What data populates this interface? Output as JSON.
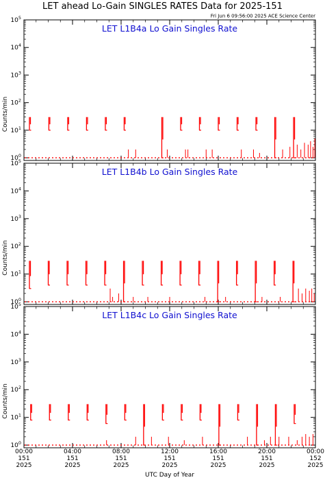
{
  "title": "LET ahead Lo-Gain SINGLES RATES Data for 2025-151",
  "timestamp": "Fri Jun  6 09:56:00 2025 ACE Science Center",
  "xlabel": "UTC Day of Year",
  "colors": {
    "series": "#ff0000",
    "panel_title": "#1010d0",
    "axes": "#000000"
  },
  "x_ticks": [
    {
      "hour": 0,
      "l1": "00:00",
      "l2": "151",
      "l3": "2025"
    },
    {
      "hour": 4,
      "l1": "04:00",
      "l2": "151",
      "l3": "2025"
    },
    {
      "hour": 8,
      "l1": "08:00",
      "l2": "151",
      "l3": "2025"
    },
    {
      "hour": 12,
      "l1": "12:00",
      "l2": "151",
      "l3": "2025"
    },
    {
      "hour": 16,
      "l1": "16:00",
      "l2": "151",
      "l3": "2025"
    },
    {
      "hour": 20,
      "l1": "20:00",
      "l2": "151",
      "l3": "2025"
    },
    {
      "hour": 24,
      "l1": "00:00",
      "l2": "152",
      "l3": "2025"
    }
  ],
  "chart_data": [
    {
      "type": "line",
      "title": "LET L1B4a Lo Gain Singles Rate",
      "ylabel": "Counts/min",
      "yscale": "log",
      "ylim": [
        0.8,
        100000
      ],
      "xlim": [
        0,
        24
      ],
      "y_ticks": [
        {
          "base": "10",
          "exp": "0",
          "v": 1
        },
        {
          "base": "10",
          "exp": "1",
          "v": 10
        },
        {
          "base": "10",
          "exp": "2",
          "v": 100
        },
        {
          "base": "10",
          "exp": "3",
          "v": 1000
        },
        {
          "base": "10",
          "exp": "4",
          "v": 10000
        },
        {
          "base": "10",
          "exp": "5",
          "v": 100000
        }
      ],
      "spikes": [
        {
          "x": 0.45,
          "y": 30,
          "ymin": 10
        },
        {
          "x": 2.05,
          "y": 30,
          "ymin": 10
        },
        {
          "x": 3.6,
          "y": 30,
          "ymin": 10
        },
        {
          "x": 5.15,
          "y": 30,
          "ymin": 10
        },
        {
          "x": 6.7,
          "y": 30,
          "ymin": 10
        },
        {
          "x": 8.25,
          "y": 30,
          "ymin": 10
        },
        {
          "x": 11.35,
          "y": 30,
          "ymin": 1
        },
        {
          "x": 12.9,
          "y": 30,
          "ymin": 10
        },
        {
          "x": 14.45,
          "y": 30,
          "ymin": 10
        },
        {
          "x": 16.0,
          "y": 30,
          "ymin": 10
        },
        {
          "x": 17.55,
          "y": 30,
          "ymin": 10
        },
        {
          "x": 19.1,
          "y": 30,
          "ymin": 10
        },
        {
          "x": 20.65,
          "y": 30,
          "ymin": 1
        },
        {
          "x": 22.2,
          "y": 30,
          "ymin": 1
        }
      ],
      "noise": [
        {
          "x": 8.6,
          "y": 2
        },
        {
          "x": 8.9,
          "y": 1
        },
        {
          "x": 9.2,
          "y": 2
        },
        {
          "x": 11.8,
          "y": 2
        },
        {
          "x": 13.3,
          "y": 2
        },
        {
          "x": 13.5,
          "y": 2
        },
        {
          "x": 15.0,
          "y": 2
        },
        {
          "x": 15.5,
          "y": 2
        },
        {
          "x": 16.6,
          "y": 1
        },
        {
          "x": 17.9,
          "y": 2
        },
        {
          "x": 18.9,
          "y": 2
        },
        {
          "x": 19.4,
          "y": 1.5
        },
        {
          "x": 21.3,
          "y": 2
        },
        {
          "x": 21.9,
          "y": 2.5
        },
        {
          "x": 22.5,
          "y": 3
        },
        {
          "x": 22.8,
          "y": 2
        },
        {
          "x": 23.1,
          "y": 3.5
        },
        {
          "x": 23.4,
          "y": 3
        },
        {
          "x": 23.6,
          "y": 4
        },
        {
          "x": 23.8,
          "y": 2.5
        },
        {
          "x": 23.95,
          "y": 5
        }
      ]
    },
    {
      "type": "line",
      "title": "LET L1B4b Lo Gain Singles Rate",
      "ylabel": "Counts/min",
      "yscale": "log",
      "ylim": [
        0.8,
        100000
      ],
      "xlim": [
        0,
        24
      ],
      "y_ticks": [
        {
          "base": "10",
          "exp": "0",
          "v": 1
        },
        {
          "base": "10",
          "exp": "1",
          "v": 10
        },
        {
          "base": "10",
          "exp": "2",
          "v": 100
        },
        {
          "base": "10",
          "exp": "3",
          "v": 1000
        },
        {
          "base": "10",
          "exp": "4",
          "v": 10000
        },
        {
          "base": "10",
          "exp": "5",
          "v": 100000
        }
      ],
      "spikes": [
        {
          "x": 0.45,
          "y": 30,
          "ymin": 3
        },
        {
          "x": 2.0,
          "y": 30,
          "ymin": 4
        },
        {
          "x": 3.55,
          "y": 30,
          "ymin": 4
        },
        {
          "x": 5.1,
          "y": 30,
          "ymin": 4
        },
        {
          "x": 6.65,
          "y": 30,
          "ymin": 4
        },
        {
          "x": 8.2,
          "y": 30,
          "ymin": 1
        },
        {
          "x": 9.75,
          "y": 30,
          "ymin": 4
        },
        {
          "x": 11.3,
          "y": 30,
          "ymin": 4
        },
        {
          "x": 12.85,
          "y": 30,
          "ymin": 4
        },
        {
          "x": 14.4,
          "y": 30,
          "ymin": 4
        },
        {
          "x": 15.95,
          "y": 30,
          "ymin": 1
        },
        {
          "x": 17.5,
          "y": 30,
          "ymin": 4
        },
        {
          "x": 19.05,
          "y": 30,
          "ymin": 1
        },
        {
          "x": 20.6,
          "y": 30,
          "ymin": 4
        },
        {
          "x": 22.15,
          "y": 30,
          "ymin": 1
        }
      ],
      "noise": [
        {
          "x": 7.1,
          "y": 3
        },
        {
          "x": 7.3,
          "y": 1.5
        },
        {
          "x": 7.8,
          "y": 2
        },
        {
          "x": 9.0,
          "y": 1.5
        },
        {
          "x": 10.2,
          "y": 1.5
        },
        {
          "x": 12.0,
          "y": 1.5
        },
        {
          "x": 14.9,
          "y": 1.5
        },
        {
          "x": 16.6,
          "y": 1.5
        },
        {
          "x": 19.6,
          "y": 1.5
        },
        {
          "x": 21.1,
          "y": 1.5
        },
        {
          "x": 22.6,
          "y": 3
        },
        {
          "x": 22.9,
          "y": 2
        },
        {
          "x": 23.2,
          "y": 3
        },
        {
          "x": 23.5,
          "y": 2.5
        },
        {
          "x": 23.7,
          "y": 3
        },
        {
          "x": 23.9,
          "y": 2
        }
      ]
    },
    {
      "type": "line",
      "title": "LET L1B4c Lo Gain Singles Rate",
      "ylabel": "Counts/min",
      "yscale": "log",
      "ylim": [
        0.8,
        100000
      ],
      "xlim": [
        0,
        24
      ],
      "y_ticks": [
        {
          "base": "10",
          "exp": "0",
          "v": 1
        },
        {
          "base": "10",
          "exp": "1",
          "v": 10
        },
        {
          "base": "10",
          "exp": "2",
          "v": 100
        },
        {
          "base": "10",
          "exp": "3",
          "v": 1000
        },
        {
          "base": "10",
          "exp": "4",
          "v": 10000
        },
        {
          "base": "10",
          "exp": "5",
          "v": 100000
        }
      ],
      "spikes": [
        {
          "x": 0.55,
          "y": 30,
          "ymin": 8
        },
        {
          "x": 2.1,
          "y": 30,
          "ymin": 8
        },
        {
          "x": 3.65,
          "y": 30,
          "ymin": 8
        },
        {
          "x": 5.2,
          "y": 30,
          "ymin": 8
        },
        {
          "x": 6.75,
          "y": 30,
          "ymin": 6
        },
        {
          "x": 8.3,
          "y": 30,
          "ymin": 8
        },
        {
          "x": 9.85,
          "y": 30,
          "ymin": 1
        },
        {
          "x": 11.4,
          "y": 30,
          "ymin": 8
        },
        {
          "x": 12.95,
          "y": 30,
          "ymin": 8
        },
        {
          "x": 14.5,
          "y": 30,
          "ymin": 8
        },
        {
          "x": 16.05,
          "y": 30,
          "ymin": 1
        },
        {
          "x": 17.6,
          "y": 30,
          "ymin": 8
        },
        {
          "x": 19.15,
          "y": 30,
          "ymin": 1
        },
        {
          "x": 20.7,
          "y": 30,
          "ymin": 1
        },
        {
          "x": 22.25,
          "y": 30,
          "ymin": 6
        }
      ],
      "noise": [
        {
          "x": 6.8,
          "y": 1.5
        },
        {
          "x": 9.2,
          "y": 2
        },
        {
          "x": 10.5,
          "y": 2
        },
        {
          "x": 11.9,
          "y": 2
        },
        {
          "x": 13.2,
          "y": 1.5
        },
        {
          "x": 14.7,
          "y": 2
        },
        {
          "x": 18.4,
          "y": 2
        },
        {
          "x": 19.8,
          "y": 1.5
        },
        {
          "x": 20.3,
          "y": 2
        },
        {
          "x": 21.0,
          "y": 2
        },
        {
          "x": 21.8,
          "y": 2
        },
        {
          "x": 22.5,
          "y": 1.5
        },
        {
          "x": 22.9,
          "y": 2
        },
        {
          "x": 23.2,
          "y": 2.5
        },
        {
          "x": 23.5,
          "y": 2
        },
        {
          "x": 23.8,
          "y": 2.5
        }
      ]
    }
  ]
}
